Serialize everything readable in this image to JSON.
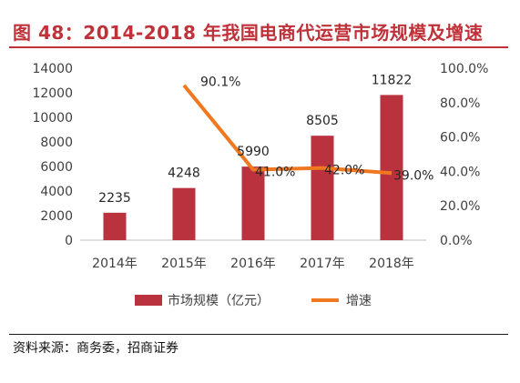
{
  "header": {
    "title": "图 48：2014-2018 年我国电商代运营市场规模及增速"
  },
  "footer": {
    "source": "资料来源：商务委，招商证券"
  },
  "colors": {
    "bar": "#b9323d",
    "line": "#f07820",
    "title": "#c0323a",
    "axis": "#bfbfbf"
  },
  "chart_data": {
    "type": "bar",
    "categories": [
      "2014年",
      "2015年",
      "2016年",
      "2017年",
      "2018年"
    ],
    "series": [
      {
        "name": "市场规模（亿元）",
        "type": "bar",
        "axis": "left",
        "values": [
          2235,
          4248,
          5990,
          8505,
          11822
        ],
        "labels": [
          "2235",
          "4248",
          "5990",
          "8505",
          "11822"
        ]
      },
      {
        "name": "增速",
        "type": "line",
        "axis": "right",
        "values": [
          null,
          90.1,
          41.0,
          42.0,
          39.0
        ],
        "labels": [
          "",
          "90.1%",
          "41.0%",
          "42.0%",
          "39.0%"
        ]
      }
    ],
    "y_left": {
      "min": 0,
      "max": 14000,
      "ticks": [
        "0",
        "2000",
        "4000",
        "6000",
        "8000",
        "10000",
        "12000",
        "14000"
      ]
    },
    "y_right": {
      "min": 0,
      "max": 100,
      "ticks": [
        "0.0%",
        "20.0%",
        "40.0%",
        "60.0%",
        "80.0%",
        "100.0%"
      ]
    },
    "grid": false,
    "legend_position": "bottom"
  }
}
